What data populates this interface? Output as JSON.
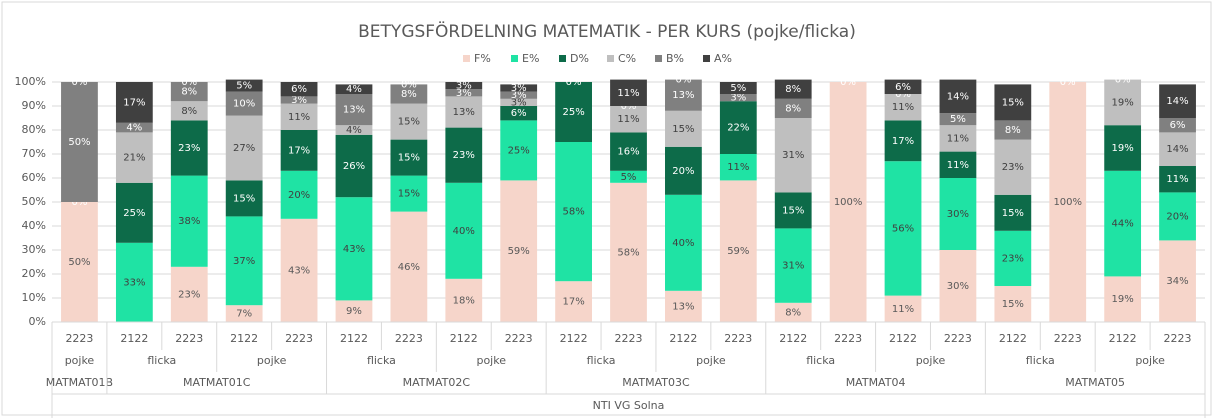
{
  "chart_data": {
    "type": "stacked_bar",
    "title": "BETYGSFÖRDELNING MATEMATIK - PER KURS (pojke/flicka)",
    "group_label": "NTI VG Solna",
    "courses": [
      {
        "name": "MATMAT01B",
        "groups": [
          {
            "name": "pojke",
            "years": [
              "2223"
            ]
          }
        ]
      },
      {
        "name": "MATMAT01C",
        "groups": [
          {
            "name": "flicka",
            "years": [
              "2122",
              "2223"
            ]
          },
          {
            "name": "pojke",
            "years": [
              "2122",
              "2223"
            ]
          }
        ]
      },
      {
        "name": "MATMAT02C",
        "groups": [
          {
            "name": "flicka",
            "years": [
              "2122",
              "2223"
            ]
          },
          {
            "name": "pojke",
            "years": [
              "2122",
              "2223"
            ]
          }
        ]
      },
      {
        "name": "MATMAT03C",
        "groups": [
          {
            "name": "flicka",
            "years": [
              "2122",
              "2223"
            ]
          },
          {
            "name": "pojke",
            "years": [
              "2122",
              "2223"
            ]
          }
        ]
      },
      {
        "name": "MATMAT04",
        "groups": [
          {
            "name": "flicka",
            "years": [
              "2122",
              "2223"
            ]
          },
          {
            "name": "pojke",
            "years": [
              "2122",
              "2223"
            ]
          }
        ]
      },
      {
        "name": "MATMAT05",
        "groups": [
          {
            "name": "flicka",
            "years": [
              "2122",
              "2223"
            ]
          },
          {
            "name": "pojke",
            "years": [
              "2122",
              "2223"
            ]
          }
        ]
      }
    ],
    "series": [
      {
        "name": "F%",
        "color": "#f6d5ca",
        "label_color": "#595959",
        "values": [
          50,
          0,
          23,
          7,
          43,
          9,
          46,
          18,
          59,
          17,
          58,
          13,
          59,
          8,
          100,
          11,
          30,
          15,
          100,
          19,
          34
        ],
        "value_labels": [
          "50%",
          "0%",
          "23%",
          "7%",
          "43%",
          "9%",
          "46%",
          "18%",
          "59%",
          "17%",
          "58%",
          "13%",
          "59%",
          "8%",
          "100%",
          "11%",
          "30%",
          "15%",
          "100%",
          "19%",
          "34%"
        ]
      },
      {
        "name": "E%",
        "color": "#1fe3a4",
        "label_color": "#404040",
        "values": [
          0,
          33,
          38,
          37,
          20,
          43,
          15,
          40,
          25,
          58,
          5,
          40,
          11,
          31,
          0,
          56,
          30,
          23,
          0,
          44,
          20
        ],
        "value_labels": [
          "0%",
          "33%",
          "38%",
          "37%",
          "20%",
          "43%",
          "15%",
          "40%",
          "25%",
          "58%",
          "5%",
          "40%",
          "11%",
          "31%",
          null,
          "56%",
          "30%",
          "23%",
          null,
          "44%",
          "20%"
        ]
      },
      {
        "name": "D%",
        "color": "#0d6b49",
        "label_color": "#ffffff",
        "values": [
          0,
          25,
          23,
          15,
          17,
          26,
          15,
          23,
          6,
          25,
          16,
          20,
          22,
          15,
          0,
          17,
          11,
          15,
          0,
          19,
          11
        ],
        "value_labels": [
          null,
          "25%",
          "23%",
          "15%",
          "17%",
          "26%",
          "15%",
          "23%",
          "6%",
          "25%",
          "16%",
          "20%",
          "22%",
          "15%",
          null,
          "17%",
          "11%",
          "15%",
          null,
          "19%",
          "11%"
        ]
      },
      {
        "name": "C%",
        "color": "#bfbfbf",
        "label_color": "#404040",
        "values": [
          0,
          21,
          8,
          27,
          11,
          4,
          15,
          13,
          3,
          0,
          11,
          15,
          0,
          31,
          0,
          11,
          11,
          23,
          0,
          19,
          14
        ],
        "value_labels": [
          null,
          "21%",
          "8%",
          "27%",
          "11%",
          "4%",
          "15%",
          "13%",
          "3%",
          null,
          "11%",
          "15%",
          null,
          "31%",
          null,
          "11%",
          "11%",
          "23%",
          null,
          "19%",
          "14%"
        ]
      },
      {
        "name": "B%",
        "color": "#808080",
        "label_color": "#ffffff",
        "values": [
          50,
          4,
          8,
          10,
          3,
          13,
          8,
          3,
          3,
          0,
          0,
          13,
          3,
          8,
          0,
          0,
          5,
          8,
          0,
          0,
          6
        ],
        "value_labels": [
          "50%",
          "4%",
          "8%",
          "10%",
          "3%",
          "13%",
          "8%",
          "3%",
          "3%",
          null,
          "0%",
          "13%",
          "3%",
          "8%",
          null,
          "0%",
          "5%",
          "8%",
          null,
          null,
          "6%"
        ]
      },
      {
        "name": "A%",
        "color": "#404040",
        "label_color": "#ffffff",
        "values": [
          0,
          17,
          0,
          5,
          6,
          4,
          0,
          3,
          3,
          0,
          11,
          0,
          5,
          8,
          0,
          6,
          14,
          15,
          0,
          0,
          14
        ],
        "value_labels": [
          "0%",
          "17%",
          "0%",
          "5%",
          "6%",
          "4%",
          "0%",
          "3%",
          "3%",
          "0%",
          "11%",
          "0%",
          "5%",
          "8%",
          "0%",
          "6%",
          "14%",
          "15%",
          "0%",
          "0%",
          "14%"
        ]
      }
    ],
    "ylim": [
      0,
      100
    ],
    "yticks": [
      {
        "value": 0,
        "label": "0%"
      },
      {
        "value": 10,
        "label": "10%"
      },
      {
        "value": 20,
        "label": "20%"
      },
      {
        "value": 30,
        "label": "30%"
      },
      {
        "value": 40,
        "label": "40%"
      },
      {
        "value": 50,
        "label": "50%"
      },
      {
        "value": 60,
        "label": "60%"
      },
      {
        "value": 70,
        "label": "70%"
      },
      {
        "value": 80,
        "label": "80%"
      },
      {
        "value": 90,
        "label": "90%"
      },
      {
        "value": 100,
        "label": "100%"
      }
    ],
    "grid": true,
    "legend": "top"
  }
}
